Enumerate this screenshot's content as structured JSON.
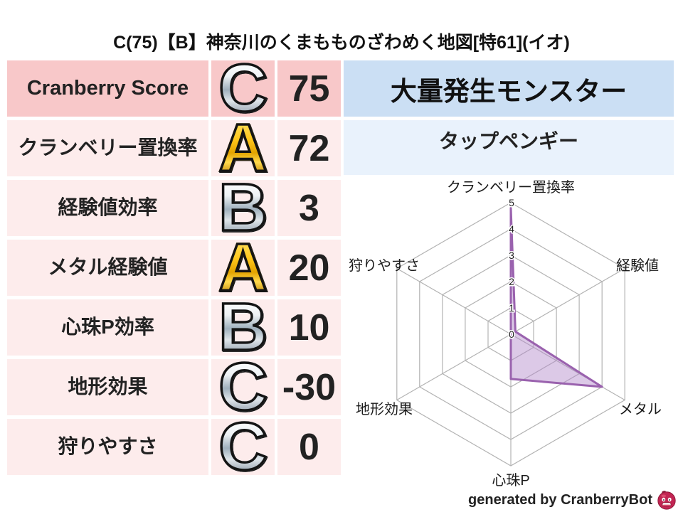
{
  "title": "C(75)【B】神奈川のくまもものざわめく地図[特61](イオ)",
  "score_table": {
    "rows": [
      {
        "label": "Cranberry Score",
        "grade": "C",
        "grade_color": "silver",
        "value": "75"
      },
      {
        "label": "クランベリー置換率",
        "grade": "A",
        "grade_color": "gold",
        "value": "72"
      },
      {
        "label": "経験値効率",
        "grade": "B",
        "grade_color": "silver",
        "value": "3"
      },
      {
        "label": "メタル経験値",
        "grade": "A",
        "grade_color": "gold",
        "value": "20"
      },
      {
        "label": "心珠P効率",
        "grade": "B",
        "grade_color": "silver",
        "value": "10"
      },
      {
        "label": "地形効果",
        "grade": "C",
        "grade_color": "silver",
        "value": "-30"
      },
      {
        "label": "狩りやすさ",
        "grade": "C",
        "grade_color": "silver",
        "value": "0"
      }
    ]
  },
  "monster_panel": {
    "header": "大量発生モンスター",
    "name": "タップペンギー"
  },
  "chart_data": {
    "type": "radar",
    "categories": [
      "クランベリー置換率",
      "経験値",
      "メタル",
      "心珠P",
      "地形効果",
      "狩りやすさ"
    ],
    "values": [
      4.8,
      0.2,
      4.0,
      1.7,
      0,
      0
    ],
    "ticks": [
      0,
      1,
      2,
      3,
      4,
      5
    ],
    "rmax": 5,
    "grid_shape": "hexagon",
    "grid_color": "#b3b3b3",
    "series_stroke": "#9a62ae",
    "series_fill": "rgba(178,136,201,0.45)",
    "tick_color": "#222222"
  },
  "footer": {
    "credit": "generated by CranberryBot",
    "icon": "cranberry-mascot-icon"
  },
  "colors": {
    "score_header_bg": "#f8c8c9",
    "score_row_bg": "#fdecec",
    "monster_header_bg": "#cbdff4",
    "monster_name_bg": "#e9f2fc",
    "grade_gold": "#f0b400",
    "grade_silver": "#aebcc8",
    "radar_purple": "#9a62ae"
  }
}
